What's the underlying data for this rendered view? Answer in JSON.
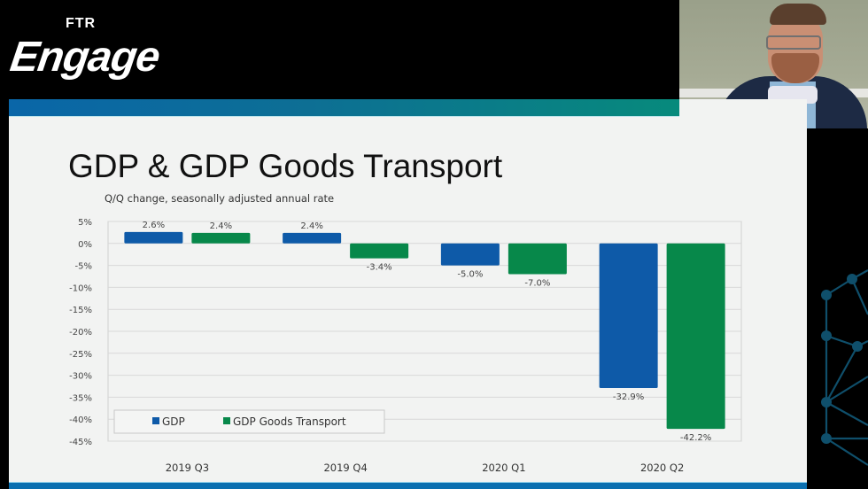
{
  "brand": {
    "logo_top": "FTR",
    "logo_main": "Engage"
  },
  "slide": {
    "title": "GDP & GDP Goods Transport",
    "subtitle": "Q/Q change, seasonally adjusted annual rate"
  },
  "colors": {
    "gdp": "#0e5aa8",
    "gdp_goods_transport": "#07884a",
    "header_start": "#0a66a8",
    "header_end": "#078a7c",
    "network": "#0f4f6b"
  },
  "chart_data": {
    "type": "bar",
    "title": "GDP & GDP Goods Transport",
    "subtitle": "Q/Q change, seasonally adjusted annual rate",
    "xlabel": "",
    "ylabel": "",
    "categories": [
      "2019 Q3",
      "2019 Q4",
      "2020 Q1",
      "2020 Q2"
    ],
    "series": [
      {
        "name": "GDP",
        "values": [
          2.6,
          2.4,
          -5.0,
          -32.9
        ],
        "labels": [
          "2.6%",
          "2.4%",
          "-5.0%",
          "-32.9%"
        ]
      },
      {
        "name": "GDP Goods Transport",
        "values": [
          2.4,
          -3.4,
          -7.0,
          -42.2
        ],
        "labels": [
          "2.4%",
          "-3.4%",
          "-7.0%",
          "-42.2%"
        ]
      }
    ],
    "ylim": [
      -45,
      5
    ],
    "yticks": [
      5,
      0,
      -5,
      -10,
      -15,
      -20,
      -25,
      -30,
      -35,
      -40,
      -45
    ],
    "ytick_labels": [
      "5%",
      "0%",
      "-5%",
      "-10%",
      "-15%",
      "-20%",
      "-25%",
      "-30%",
      "-35%",
      "-40%",
      "-45%"
    ],
    "grid": true,
    "legend": {
      "position": "bottom-left",
      "entries": [
        "GDP",
        "GDP Goods Transport"
      ]
    }
  }
}
